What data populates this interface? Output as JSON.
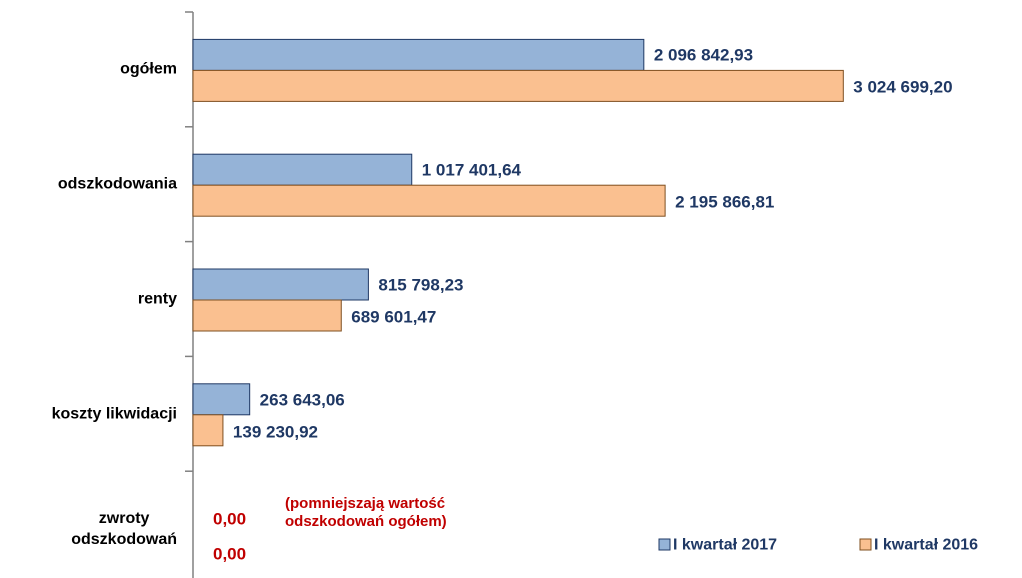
{
  "chart_data": {
    "type": "barh",
    "categories": [
      "ogółem",
      "odszkodowania",
      "renty",
      "koszty likwidacji",
      "zwroty\nodszkodowań"
    ],
    "series": [
      {
        "name": "I kwartał 2017",
        "color": "#95b3d7",
        "border": "#1f3864",
        "values": [
          2096842.93,
          1017401.64,
          815798.23,
          263643.06,
          0
        ],
        "value_labels": [
          "2 096 842,93",
          "1 017 401,64",
          "815 798,23",
          "263 643,06",
          "0,00"
        ]
      },
      {
        "name": "I kwartał 2016",
        "color": "#fac090",
        "border": "#7f4f1f",
        "values": [
          3024699.2,
          2195866.81,
          689601.47,
          139230.92,
          0
        ],
        "value_labels": [
          "3 024 699,20",
          "2 195 866,81",
          "689 601,47",
          "139 230,92",
          "0,00"
        ]
      }
    ],
    "annotation": {
      "text": "(pomniejszają wartość\nodszkodowań ogółem)",
      "color": "#c00000"
    },
    "xlim": [
      0,
      3800000
    ],
    "legend": "lower right"
  }
}
